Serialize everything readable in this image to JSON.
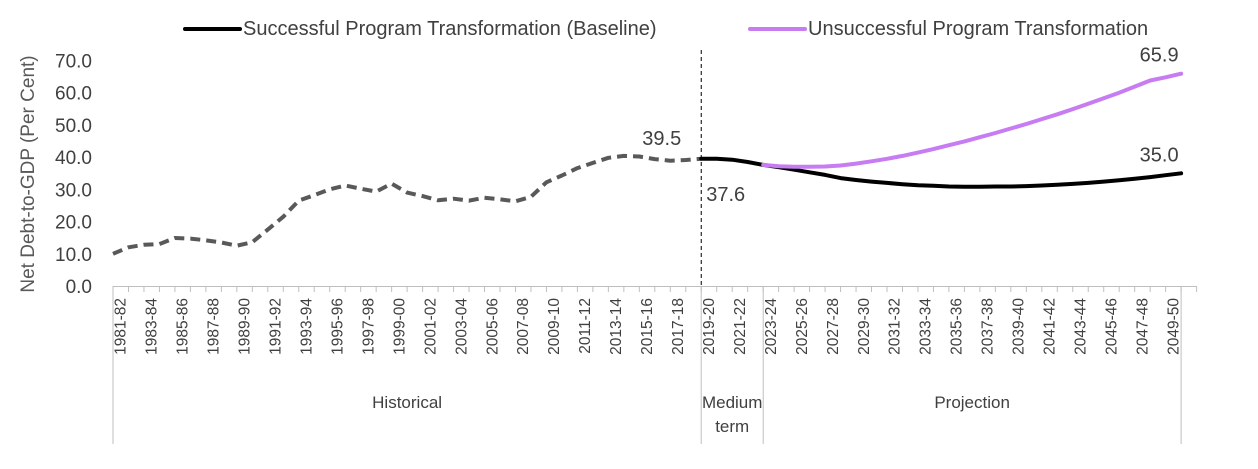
{
  "chart_data": {
    "type": "line",
    "ylabel": "Net Debt-to-GDP (Per Cent)",
    "ylim": [
      0,
      70
    ],
    "yticks": [
      "0.0",
      "10.0",
      "20.0",
      "30.0",
      "40.0",
      "50.0",
      "60.0",
      "70.0"
    ],
    "x_labels": [
      "1981-82",
      "1983-84",
      "1985-86",
      "1987-88",
      "1989-90",
      "1991-92",
      "1993-94",
      "1995-96",
      "1997-98",
      "1999-00",
      "2001-02",
      "2003-04",
      "2005-06",
      "2007-08",
      "2009-10",
      "2011-12",
      "2013-14",
      "2015-16",
      "2017-18",
      "2019-20",
      "2021-22",
      "2023-24",
      "2025-26",
      "2027-28",
      "2029-30",
      "2031-32",
      "2033-34",
      "2035-36",
      "2037-38",
      "2039-40",
      "2041-42",
      "2043-44",
      "2045-46",
      "2047-48",
      "2049-50"
    ],
    "groups": [
      {
        "label": "Historical",
        "from": "1981-82",
        "to": "2019-20"
      },
      {
        "label": "Medium term",
        "from": "2019-20",
        "to": "2023-24"
      },
      {
        "label": "Projection",
        "from": "2023-24",
        "to": "2050-51"
      }
    ],
    "divider_at": "2019-20",
    "legend_position": "top",
    "series": [
      {
        "name": "Successful Program Transformation (Baseline)",
        "color": "#000000",
        "historical": [
          [
            "1981-82",
            10.0
          ],
          [
            "1982-83",
            12.0
          ],
          [
            "1983-84",
            12.8
          ],
          [
            "1984-85",
            13.0
          ],
          [
            "1985-86",
            14.9
          ],
          [
            "1986-87",
            14.7
          ],
          [
            "1987-88",
            14.2
          ],
          [
            "1988-89",
            13.5
          ],
          [
            "1989-90",
            12.5
          ],
          [
            "1990-91",
            13.6
          ],
          [
            "1991-92",
            17.5
          ],
          [
            "1992-93",
            21.5
          ],
          [
            "1993-94",
            26.5
          ],
          [
            "1994-95",
            28.2
          ],
          [
            "1995-96",
            30.0
          ],
          [
            "1996-97",
            31.2
          ],
          [
            "1997-98",
            30.2
          ],
          [
            "1998-99",
            29.3
          ],
          [
            "1999-00",
            31.8
          ],
          [
            "2000-01",
            29.0
          ],
          [
            "2001-02",
            27.9
          ],
          [
            "2002-03",
            26.6
          ],
          [
            "2003-04",
            27.1
          ],
          [
            "2004-05",
            26.5
          ],
          [
            "2005-06",
            27.4
          ],
          [
            "2006-07",
            26.9
          ],
          [
            "2007-08",
            26.3
          ],
          [
            "2008-09",
            27.7
          ],
          [
            "2009-10",
            32.2
          ],
          [
            "2010-11",
            34.3
          ],
          [
            "2011-12",
            36.6
          ],
          [
            "2012-13",
            38.2
          ],
          [
            "2013-14",
            39.8
          ],
          [
            "2014-15",
            40.4
          ],
          [
            "2015-16",
            40.2
          ],
          [
            "2016-17",
            39.4
          ],
          [
            "2017-18",
            38.9
          ],
          [
            "2018-19",
            39.1
          ],
          [
            "2019-20",
            39.5
          ]
        ],
        "projected": [
          [
            "2019-20",
            39.5
          ],
          [
            "2020-21",
            39.5
          ],
          [
            "2021-22",
            39.2
          ],
          [
            "2022-23",
            38.5
          ],
          [
            "2023-24",
            37.6
          ],
          [
            "2024-25",
            36.9
          ],
          [
            "2025-26",
            36.1
          ],
          [
            "2026-27",
            35.3
          ],
          [
            "2027-28",
            34.5
          ],
          [
            "2028-29",
            33.5
          ],
          [
            "2029-30",
            32.9
          ],
          [
            "2030-31",
            32.4
          ],
          [
            "2031-32",
            32.0
          ],
          [
            "2032-33",
            31.6
          ],
          [
            "2033-34",
            31.3
          ],
          [
            "2034-35",
            31.1
          ],
          [
            "2035-36",
            30.9
          ],
          [
            "2036-37",
            30.8
          ],
          [
            "2037-38",
            30.8
          ],
          [
            "2038-39",
            30.9
          ],
          [
            "2039-40",
            30.9
          ],
          [
            "2040-41",
            31.0
          ],
          [
            "2041-42",
            31.2
          ],
          [
            "2042-43",
            31.4
          ],
          [
            "2043-44",
            31.7
          ],
          [
            "2044-45",
            32.0
          ],
          [
            "2045-46",
            32.4
          ],
          [
            "2046-47",
            32.8
          ],
          [
            "2047-48",
            33.3
          ],
          [
            "2048-49",
            33.8
          ],
          [
            "2049-50",
            34.4
          ],
          [
            "2050-51",
            35.0
          ]
        ]
      },
      {
        "name": "Unsuccessful Program Transformation",
        "color": "#c77cf2",
        "projected": [
          [
            "2023-24",
            37.6
          ],
          [
            "2024-25",
            37.2
          ],
          [
            "2025-26",
            37.0
          ],
          [
            "2026-27",
            37.0
          ],
          [
            "2027-28",
            37.1
          ],
          [
            "2028-29",
            37.4
          ],
          [
            "2029-30",
            38.0
          ],
          [
            "2030-31",
            38.7
          ],
          [
            "2031-32",
            39.5
          ],
          [
            "2032-33",
            40.4
          ],
          [
            "2033-34",
            41.4
          ],
          [
            "2034-35",
            42.5
          ],
          [
            "2035-36",
            43.7
          ],
          [
            "2036-37",
            44.9
          ],
          [
            "2037-38",
            46.2
          ],
          [
            "2038-39",
            47.5
          ],
          [
            "2039-40",
            48.9
          ],
          [
            "2040-41",
            50.3
          ],
          [
            "2041-42",
            51.8
          ],
          [
            "2042-43",
            53.3
          ],
          [
            "2043-44",
            54.9
          ],
          [
            "2044-45",
            56.6
          ],
          [
            "2045-46",
            58.3
          ],
          [
            "2046-47",
            60.0
          ],
          [
            "2047-48",
            61.9
          ],
          [
            "2048-49",
            63.8
          ],
          [
            "2049-50",
            64.8
          ],
          [
            "2050-51",
            65.9
          ]
        ]
      }
    ],
    "annotations": [
      {
        "text": "39.5",
        "x": "2019-20",
        "y": 39.5,
        "anchor": "above-left"
      },
      {
        "text": "37.6",
        "x": "2023-24",
        "y": 37.6,
        "anchor": "below-left"
      },
      {
        "text": "65.9",
        "x": "2050-51",
        "y": 65.9,
        "anchor": "above"
      },
      {
        "text": "35.0",
        "x": "2050-51",
        "y": 35.0,
        "anchor": "above"
      }
    ]
  }
}
